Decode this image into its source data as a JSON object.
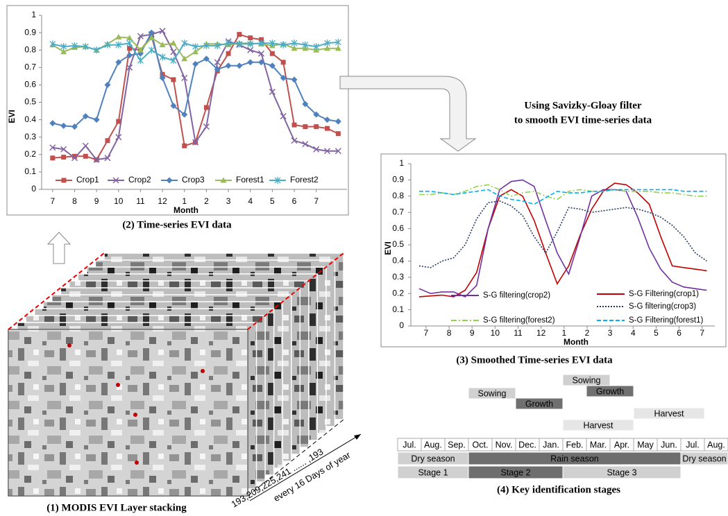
{
  "chart_data": [
    {
      "type": "line",
      "caption": "(2) Time-series EVI data",
      "x_label": "Month",
      "y_label": "EVI",
      "x": [
        0,
        0.5,
        1,
        1.5,
        2,
        2.5,
        3,
        3.5,
        4,
        4.5,
        5,
        5.5,
        6,
        6.5,
        7,
        7.5,
        8,
        8.5,
        9,
        9.5,
        10,
        10.5,
        11,
        11.5,
        12,
        12.5,
        13
      ],
      "xlim": [
        -0.5,
        13.4
      ],
      "xticks": [
        {
          "value": 0,
          "label": "7"
        },
        {
          "value": 1,
          "label": "8"
        },
        {
          "value": 2,
          "label": "9"
        },
        {
          "value": 3,
          "label": "10"
        },
        {
          "value": 4,
          "label": "11"
        },
        {
          "value": 5,
          "label": "12"
        },
        {
          "value": 6,
          "label": "1"
        },
        {
          "value": 7,
          "label": "2"
        },
        {
          "value": 8,
          "label": "3"
        },
        {
          "value": 9,
          "label": "4"
        },
        {
          "value": 10,
          "label": "5"
        },
        {
          "value": 11,
          "label": "6"
        },
        {
          "value": 12,
          "label": "7"
        }
      ],
      "ylim": [
        0,
        1
      ],
      "yticks": [
        0,
        0.1,
        0.2,
        0.3,
        0.4,
        0.5,
        0.6,
        0.7,
        0.8,
        0.9,
        1
      ],
      "series": [
        {
          "name": "Crop1",
          "color": "#c0504d",
          "marker": "square",
          "values": [
            0.18,
            0.185,
            0.19,
            0.19,
            0.17,
            0.28,
            0.39,
            0.81,
            0.8,
            0.88,
            0.66,
            0.63,
            0.25,
            0.27,
            0.47,
            0.68,
            0.78,
            0.89,
            0.87,
            0.86,
            0.78,
            0.73,
            0.37,
            0.36,
            0.36,
            0.35,
            0.32
          ]
        },
        {
          "name": "Crop2",
          "color": "#8064a2",
          "marker": "cross",
          "values": [
            0.24,
            0.23,
            0.18,
            0.25,
            0.17,
            0.18,
            0.3,
            0.7,
            0.88,
            0.89,
            0.91,
            0.79,
            0.64,
            0.27,
            0.36,
            0.73,
            0.85,
            0.83,
            0.8,
            0.78,
            0.56,
            0.42,
            0.28,
            0.26,
            0.23,
            0.22,
            0.22
          ]
        },
        {
          "name": "Crop3",
          "color": "#4f81bd",
          "marker": "diamond",
          "values": [
            0.38,
            0.365,
            0.36,
            0.42,
            0.4,
            0.6,
            0.73,
            0.77,
            0.78,
            0.9,
            0.64,
            0.48,
            0.43,
            0.72,
            0.75,
            0.69,
            0.71,
            0.71,
            0.73,
            0.73,
            0.71,
            0.64,
            0.63,
            0.49,
            0.43,
            0.4,
            0.39
          ]
        },
        {
          "name": "Forest1",
          "color": "#9bbb59",
          "marker": "triangle",
          "values": [
            0.83,
            0.79,
            0.815,
            0.82,
            0.8,
            0.835,
            0.875,
            0.87,
            0.8,
            0.87,
            0.83,
            0.84,
            0.75,
            0.79,
            0.835,
            0.835,
            0.83,
            0.84,
            0.84,
            0.835,
            0.825,
            0.835,
            0.81,
            0.81,
            0.8,
            0.81,
            0.81
          ]
        },
        {
          "name": "Forest2",
          "color": "#4bacc6",
          "marker": "star",
          "values": [
            0.835,
            0.82,
            0.825,
            0.82,
            0.8,
            0.83,
            0.83,
            0.84,
            0.74,
            0.8,
            0.76,
            0.74,
            0.84,
            0.82,
            0.825,
            0.825,
            0.84,
            0.835,
            0.835,
            0.84,
            0.84,
            0.83,
            0.84,
            0.83,
            0.82,
            0.84,
            0.845
          ]
        }
      ]
    },
    {
      "type": "line",
      "caption": "(3) Smoothed Time-series EVI data",
      "x_label": "Month",
      "y_label": "EVI",
      "x": [
        -0.3,
        0.2,
        0.7,
        1.2,
        1.7,
        2.2,
        2.7,
        3.2,
        3.7,
        4.2,
        4.7,
        5.2,
        5.7,
        6.2,
        6.7,
        7.2,
        7.7,
        8.2,
        8.7,
        9.2,
        9.7,
        10.2,
        10.7,
        11.2,
        11.7,
        12.2
      ],
      "xlim": [
        -0.66,
        12.55
      ],
      "xticks": [
        {
          "value": 0,
          "label": "7"
        },
        {
          "value": 1,
          "label": "8"
        },
        {
          "value": 2,
          "label": "9"
        },
        {
          "value": 3,
          "label": "10"
        },
        {
          "value": 4,
          "label": "11"
        },
        {
          "value": 5,
          "label": "12"
        },
        {
          "value": 6,
          "label": "1"
        },
        {
          "value": 7,
          "label": "2"
        },
        {
          "value": 8,
          "label": "3"
        },
        {
          "value": 9,
          "label": "4"
        },
        {
          "value": 10,
          "label": "5"
        },
        {
          "value": 11,
          "label": "6"
        },
        {
          "value": 12,
          "label": "7"
        }
      ],
      "ylim": [
        0,
        1
      ],
      "yticks": [
        0,
        0.1,
        0.2,
        0.3,
        0.4,
        0.5,
        0.6,
        0.7,
        0.8,
        0.9,
        1
      ],
      "series": [
        {
          "name": "S-G Filtering(crop1)",
          "color": "#c00000",
          "dash": "solid",
          "values": [
            0.18,
            0.185,
            0.19,
            0.18,
            0.22,
            0.33,
            0.6,
            0.8,
            0.84,
            0.8,
            0.65,
            0.45,
            0.26,
            0.37,
            0.56,
            0.72,
            0.83,
            0.88,
            0.87,
            0.82,
            0.75,
            0.55,
            0.37,
            0.36,
            0.35,
            0.34
          ]
        },
        {
          "name": "S-G filtering(crop2)",
          "color": "#7030a0",
          "dash": "solid",
          "values": [
            0.23,
            0.2,
            0.21,
            0.21,
            0.18,
            0.25,
            0.6,
            0.84,
            0.89,
            0.9,
            0.86,
            0.65,
            0.45,
            0.32,
            0.55,
            0.8,
            0.84,
            0.84,
            0.83,
            0.67,
            0.48,
            0.35,
            0.27,
            0.24,
            0.23,
            0.22
          ]
        },
        {
          "name": "S-G filtering(crop3)",
          "color": "#1f3864",
          "dash": "dot",
          "values": [
            0.37,
            0.36,
            0.4,
            0.42,
            0.5,
            0.66,
            0.76,
            0.77,
            0.74,
            0.68,
            0.55,
            0.45,
            0.58,
            0.73,
            0.72,
            0.7,
            0.71,
            0.72,
            0.73,
            0.72,
            0.7,
            0.67,
            0.62,
            0.55,
            0.45,
            0.4
          ]
        },
        {
          "name": "S-G filtering(forest2)",
          "color": "#92d050",
          "dash": "dashdot",
          "values": [
            0.81,
            0.81,
            0.82,
            0.81,
            0.83,
            0.86,
            0.87,
            0.84,
            0.8,
            0.82,
            0.83,
            0.8,
            0.78,
            0.83,
            0.84,
            0.83,
            0.83,
            0.84,
            0.83,
            0.83,
            0.83,
            0.82,
            0.82,
            0.81,
            0.8,
            0.8
          ]
        },
        {
          "name": "S-G Filtering(forest1)",
          "color": "#00b0f0",
          "dash": "dash",
          "values": [
            0.83,
            0.83,
            0.82,
            0.81,
            0.82,
            0.83,
            0.84,
            0.8,
            0.78,
            0.77,
            0.75,
            0.79,
            0.83,
            0.82,
            0.82,
            0.83,
            0.83,
            0.84,
            0.84,
            0.84,
            0.84,
            0.84,
            0.84,
            0.83,
            0.83,
            0.83
          ]
        }
      ]
    }
  ],
  "figure": {
    "stack_caption": "(1) MODIS EVI Layer stacking",
    "stack_days": "193,209,225,241 ...... ,193",
    "stack_interval": "every 16 Days of year",
    "arrow_note": [
      "Using Savizky-Gloay filter",
      "to smooth EVI time-series data"
    ],
    "timeline": {
      "caption": "(4) Key identification stages",
      "months": [
        "Jul.",
        "Aug.",
        "Sep.",
        "Oct.",
        "Nov.",
        "Dec.",
        "Jan.",
        "Feb.",
        "Mar.",
        "Apr.",
        "May",
        "Jun.",
        "Jul.",
        "Aug."
      ],
      "phases": [
        "Sowing",
        "Growth",
        "Harvest",
        "Sowing",
        "Growth",
        "Harvest"
      ],
      "seasons": [
        "Dry season",
        "Rain season",
        "Dry season"
      ],
      "stages": [
        "Stage 1",
        "Stage 2",
        "Stage 3"
      ]
    }
  }
}
